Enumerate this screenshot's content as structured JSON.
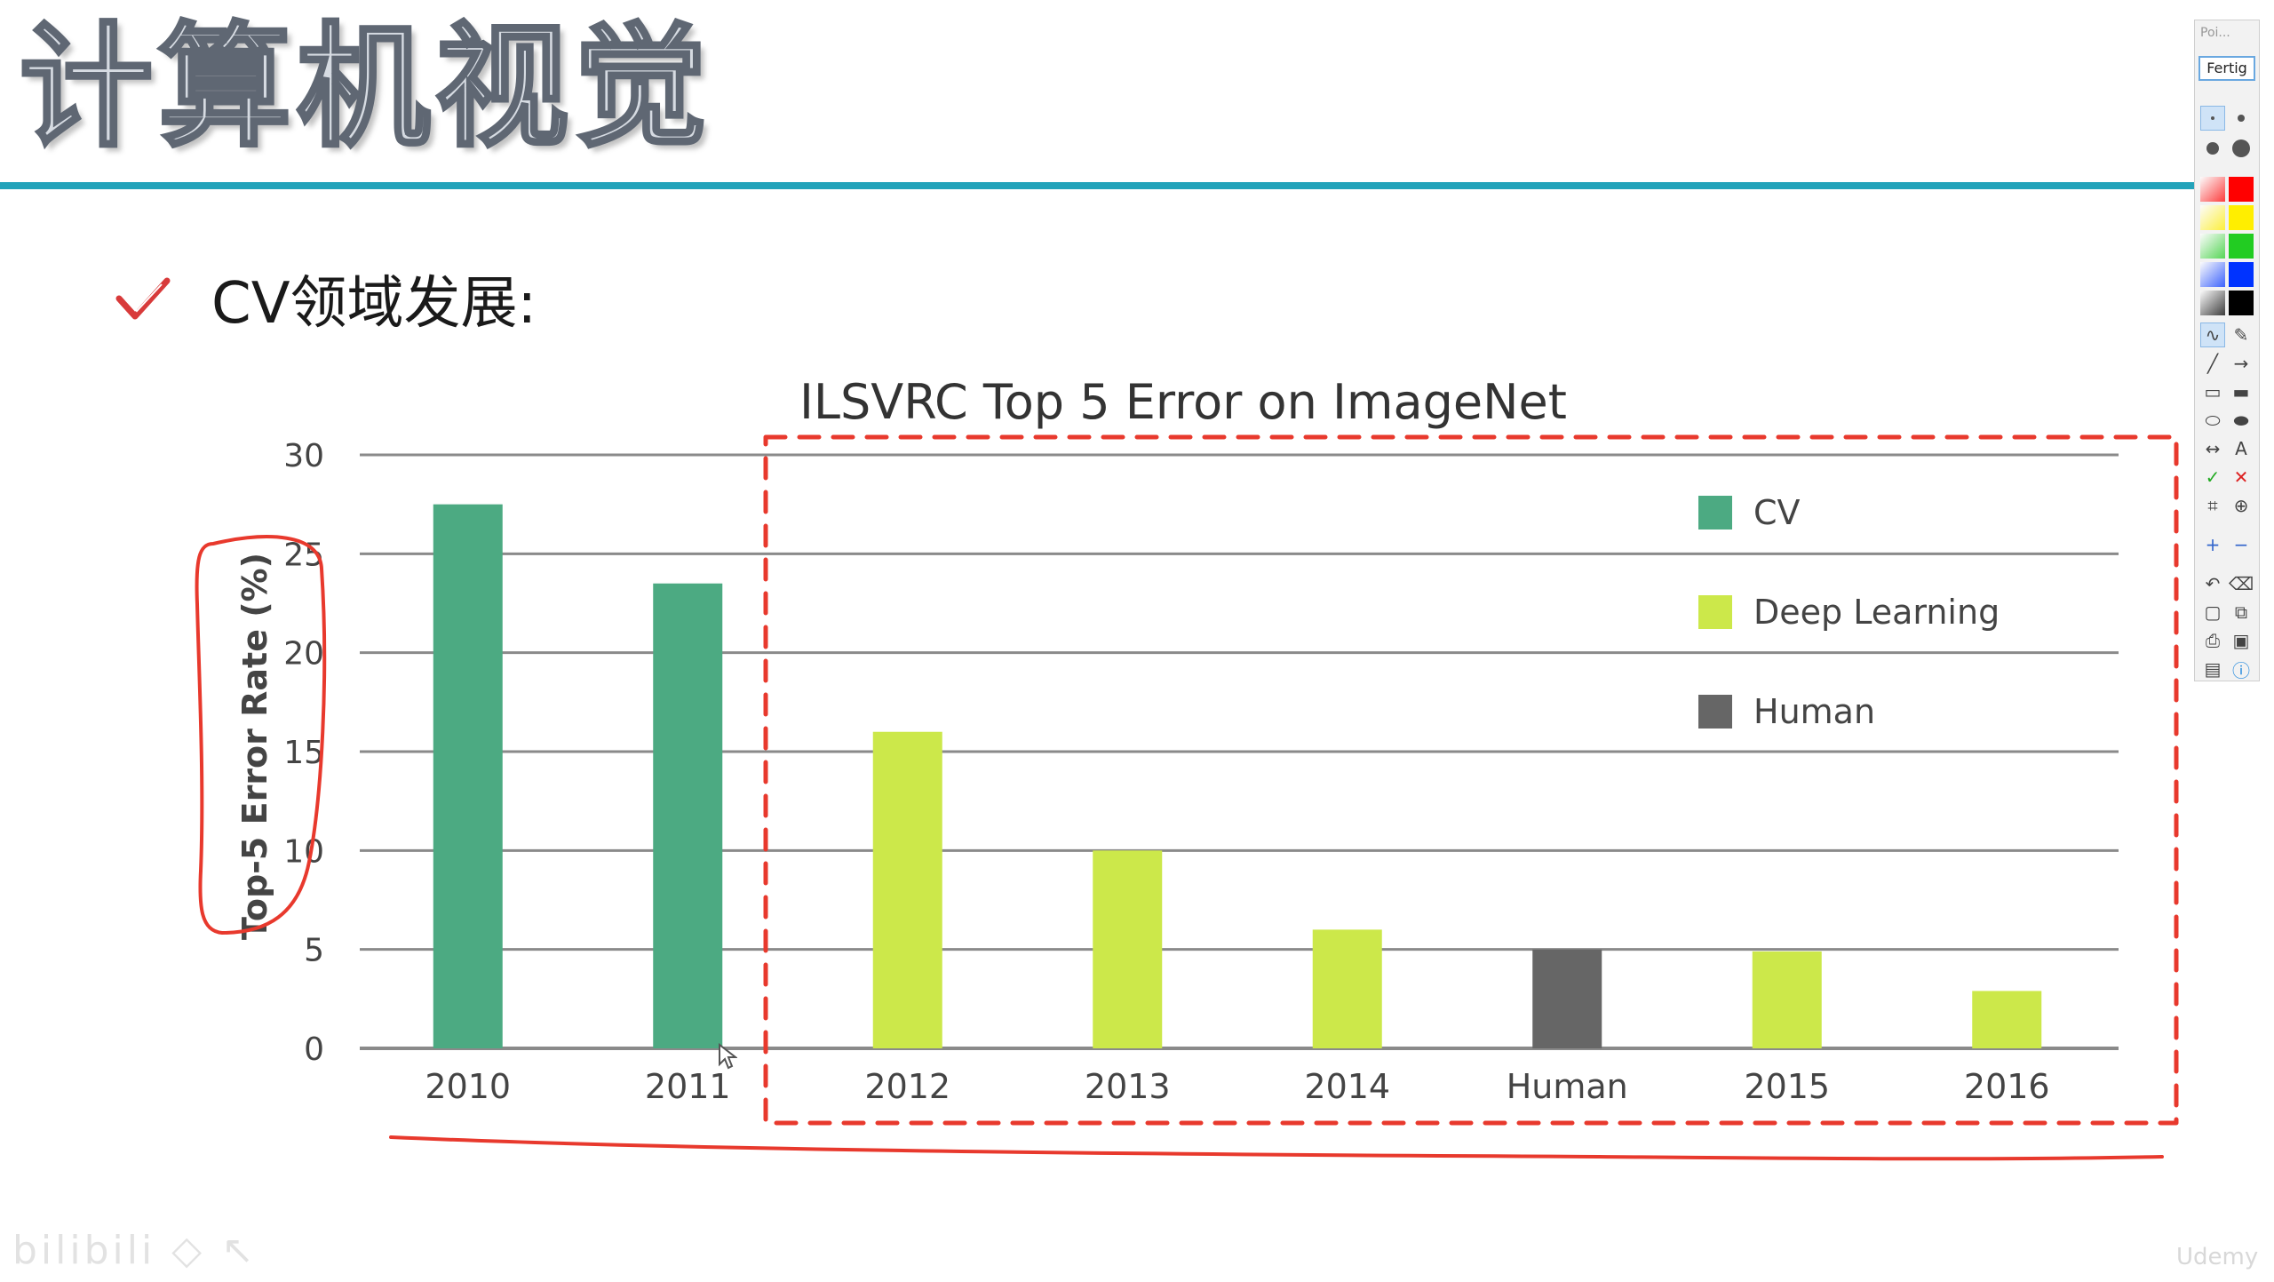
{
  "slide": {
    "title": "计算机视觉",
    "bullet_text": "CV领域发展:"
  },
  "chart_data": {
    "type": "bar",
    "title": "ILSVRC Top 5 Error on ImageNet",
    "ylabel": "Top-5 Error Rate (%)",
    "xlabel": "",
    "ylim": [
      0,
      30
    ],
    "yticks": [
      0,
      5,
      10,
      15,
      20,
      25,
      30
    ],
    "grid": true,
    "legend_position": "top-right",
    "categories": [
      "2010",
      "2011",
      "2012",
      "2013",
      "2014",
      "Human",
      "2015",
      "2016"
    ],
    "values": [
      27.5,
      23.5,
      16.0,
      10.0,
      6.0,
      5.0,
      4.9,
      2.9
    ],
    "groups": [
      "CV",
      "CV",
      "Deep Learning",
      "Deep Learning",
      "Deep Learning",
      "Human",
      "Deep Learning",
      "Deep Learning"
    ],
    "legend": [
      {
        "name": "CV",
        "color": "#4caa82"
      },
      {
        "name": "Deep Learning",
        "color": "#cce84a"
      },
      {
        "name": "Human",
        "color": "#666666"
      }
    ]
  },
  "annotation": {
    "color": "#e8392d"
  },
  "toolbar": {
    "header": "Poi...",
    "done_label": "Fertig",
    "color_swatches": [
      "#ff0000",
      "#ffee00",
      "#22cc22",
      "#0033ff",
      "#000000"
    ],
    "tools": [
      "pen-icon",
      "highlighter-icon",
      "line-icon",
      "arrow-icon",
      "rectangle-icon",
      "filled-rectangle-icon",
      "ellipse-icon",
      "filled-ellipse-icon",
      "double-arrow-icon",
      "text-icon",
      "checkmark-icon",
      "cross-icon",
      "crop-icon",
      "zoom-icon",
      "plus-icon",
      "minus-icon",
      "undo-icon",
      "trash-icon",
      "new-page-icon",
      "copy-icon",
      "print-icon",
      "save-icon",
      "screen-icon",
      "info-icon"
    ]
  }
}
